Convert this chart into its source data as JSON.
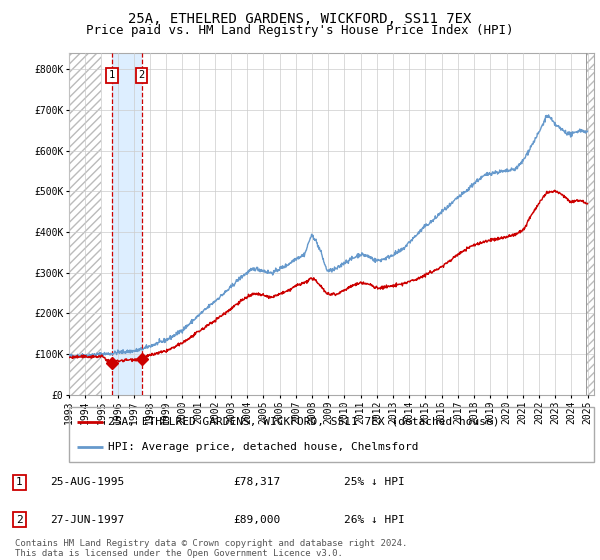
{
  "title": "25A, ETHELRED GARDENS, WICKFORD, SS11 7EX",
  "subtitle": "Price paid vs. HM Land Registry's House Price Index (HPI)",
  "legend_label_red": "25A, ETHELRED GARDENS, WICKFORD, SS11 7EX (detached house)",
  "legend_label_blue": "HPI: Average price, detached house, Chelmsford",
  "footer": "Contains HM Land Registry data © Crown copyright and database right 2024.\nThis data is licensed under the Open Government Licence v3.0.",
  "transaction1": {
    "label": "1",
    "date": "25-AUG-1995",
    "price": "£78,317",
    "pct": "25% ↓ HPI",
    "x": 1995.645
  },
  "transaction2": {
    "label": "2",
    "date": "27-JUN-1997",
    "price": "£89,000",
    "pct": "26% ↓ HPI",
    "x": 1997.478
  },
  "t1_y": 78317,
  "t2_y": 89000,
  "xlim": [
    1993.0,
    2025.4
  ],
  "ylim": [
    0,
    840000
  ],
  "yticks": [
    0,
    100000,
    200000,
    300000,
    400000,
    500000,
    600000,
    700000,
    800000
  ],
  "ytick_labels": [
    "£0",
    "£100K",
    "£200K",
    "£300K",
    "£400K",
    "£500K",
    "£600K",
    "£700K",
    "£800K"
  ],
  "xtick_years": [
    1993,
    1994,
    1995,
    1996,
    1997,
    1998,
    1999,
    2000,
    2001,
    2002,
    2003,
    2004,
    2005,
    2006,
    2007,
    2008,
    2009,
    2010,
    2011,
    2012,
    2013,
    2014,
    2015,
    2016,
    2017,
    2018,
    2019,
    2020,
    2021,
    2022,
    2023,
    2024,
    2025
  ],
  "red_line_color": "#cc0000",
  "blue_line_color": "#6699cc",
  "highlight_color": "#ddeeff",
  "hatch_color": "#bbbbbb",
  "grid_color": "#cccccc",
  "vline_color": "#cc0000",
  "bg_color": "#ffffff",
  "title_fontsize": 10,
  "subtitle_fontsize": 9,
  "tick_fontsize": 7,
  "legend_fontsize": 8,
  "table_fontsize": 8,
  "footer_fontsize": 6.5,
  "hpi_anchors_t": [
    1993.0,
    1994.0,
    1995.0,
    1995.5,
    1996.0,
    1997.0,
    1997.5,
    1998.0,
    1999.0,
    2000.0,
    2001.0,
    2002.0,
    2003.0,
    2003.5,
    2004.0,
    2004.5,
    2005.0,
    2005.5,
    2006.0,
    2006.5,
    2007.0,
    2007.5,
    2008.0,
    2008.5,
    2009.0,
    2009.5,
    2010.0,
    2010.5,
    2011.0,
    2011.5,
    2012.0,
    2012.5,
    2013.0,
    2013.5,
    2014.0,
    2014.5,
    2015.0,
    2015.5,
    2016.0,
    2016.5,
    2017.0,
    2017.5,
    2018.0,
    2018.5,
    2019.0,
    2019.5,
    2020.0,
    2020.5,
    2021.0,
    2021.5,
    2022.0,
    2022.3,
    2022.5,
    2023.0,
    2023.5,
    2024.0,
    2024.5,
    2025.0
  ],
  "hpi_anchors_v": [
    95000,
    97000,
    100000,
    101000,
    104000,
    108000,
    112000,
    120000,
    135000,
    160000,
    195000,
    230000,
    265000,
    285000,
    300000,
    310000,
    305000,
    300000,
    310000,
    320000,
    335000,
    345000,
    390000,
    355000,
    305000,
    310000,
    325000,
    335000,
    345000,
    340000,
    330000,
    335000,
    345000,
    355000,
    375000,
    395000,
    415000,
    430000,
    450000,
    465000,
    485000,
    500000,
    520000,
    535000,
    545000,
    548000,
    550000,
    555000,
    575000,
    610000,
    645000,
    670000,
    685000,
    665000,
    650000,
    640000,
    650000,
    645000
  ],
  "red_anchors_t": [
    1993.0,
    1994.0,
    1995.0,
    1995.645,
    1996.0,
    1997.0,
    1997.478,
    1998.0,
    1999.0,
    2000.0,
    2001.0,
    2002.0,
    2003.0,
    2003.5,
    2004.0,
    2004.5,
    2005.0,
    2005.5,
    2006.0,
    2006.5,
    2007.0,
    2007.5,
    2008.0,
    2008.5,
    2009.0,
    2009.5,
    2010.0,
    2010.5,
    2011.0,
    2011.5,
    2012.0,
    2013.0,
    2014.0,
    2015.0,
    2016.0,
    2017.0,
    2018.0,
    2019.0,
    2020.0,
    2021.0,
    2021.5,
    2022.0,
    2022.5,
    2023.0,
    2023.5,
    2024.0,
    2024.5,
    2025.0
  ],
  "red_anchors_v": [
    92000,
    93500,
    94000,
    78317,
    83000,
    87000,
    89000,
    97000,
    108000,
    128000,
    155000,
    183000,
    212000,
    228000,
    240000,
    248000,
    244000,
    240000,
    248000,
    255000,
    268000,
    275000,
    285000,
    270000,
    248000,
    248000,
    258000,
    268000,
    275000,
    272000,
    263000,
    268000,
    278000,
    295000,
    315000,
    345000,
    368000,
    380000,
    388000,
    405000,
    440000,
    470000,
    495000,
    500000,
    490000,
    475000,
    478000,
    470000
  ]
}
